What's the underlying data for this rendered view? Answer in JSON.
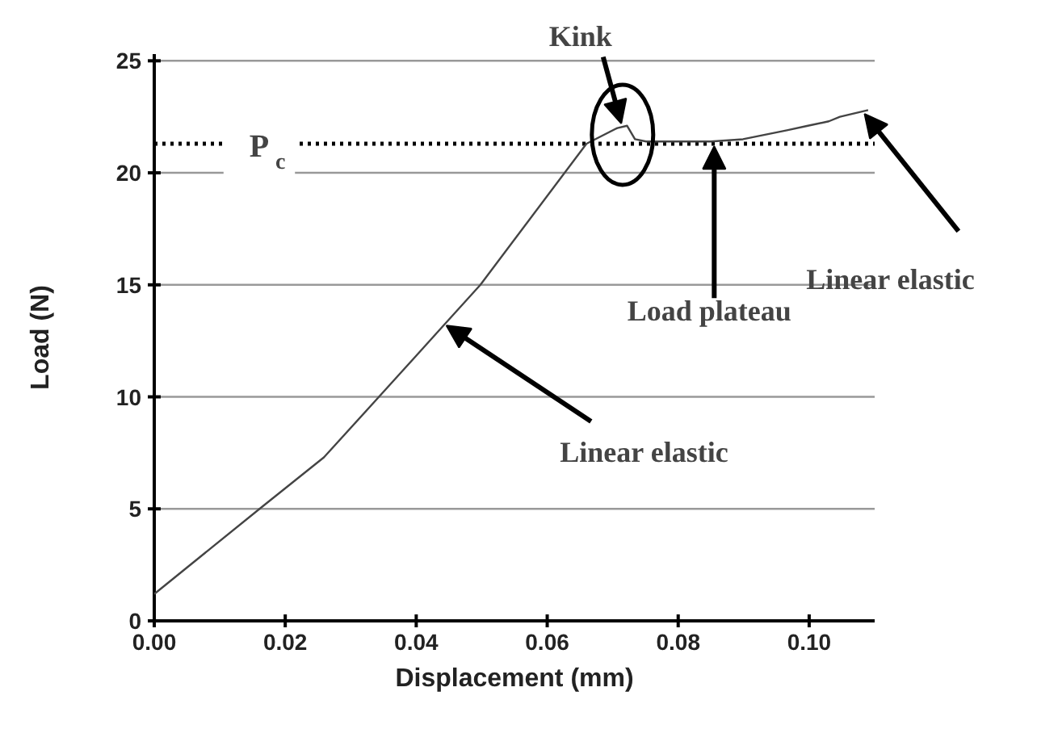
{
  "chart_data": {
    "type": "line",
    "xlabel": "Displacement (mm)",
    "ylabel": "Load (N)",
    "x": [
      0.0,
      0.0165,
      0.0259,
      0.034,
      0.0436,
      0.0498,
      0.066,
      0.0707,
      0.0722,
      0.0734,
      0.0751,
      0.085,
      0.0899,
      0.0966,
      0.0998,
      0.103,
      0.1047,
      0.109
    ],
    "series": [
      {
        "color": "#444444",
        "values": [
          1.2,
          5.1,
          7.3,
          9.9,
          13.0,
          15.0,
          21.3,
          22.0,
          22.1,
          21.5,
          21.4,
          21.4,
          21.5,
          21.9,
          22.1,
          22.3,
          22.5,
          22.8
        ]
      }
    ],
    "xlim": [
      0,
      0.11
    ],
    "ylim": [
      0,
      25.3
    ],
    "xticks": [
      {
        "value": 0,
        "label": "0.00"
      },
      {
        "value": 0.02,
        "label": "0.02"
      },
      {
        "value": 0.04,
        "label": "0.04"
      },
      {
        "value": 0.06,
        "label": "0.06"
      },
      {
        "value": 0.08,
        "label": "0.08"
      },
      {
        "value": 0.1,
        "label": "0.10"
      }
    ],
    "yticks": [
      0,
      5,
      10,
      15,
      20,
      25
    ],
    "grid": "y",
    "marker": "none",
    "line_style": "solid",
    "ref_lines": [
      {
        "axis": "y",
        "value": 21.3,
        "label": "P$_{c}$",
        "line_style": "dotted",
        "color": "#000000"
      }
    ],
    "annotations": [
      {
        "text": "Kink",
        "x": 0.0715,
        "y": 22.0
      },
      {
        "text": "Linear elastic",
        "x": 0.044,
        "y": 13.3
      },
      {
        "text": "Load plateau",
        "x": 0.0855,
        "y": 21.4
      },
      {
        "text": "Linear elastic",
        "x": 0.108,
        "y": 22.8
      }
    ]
  }
}
